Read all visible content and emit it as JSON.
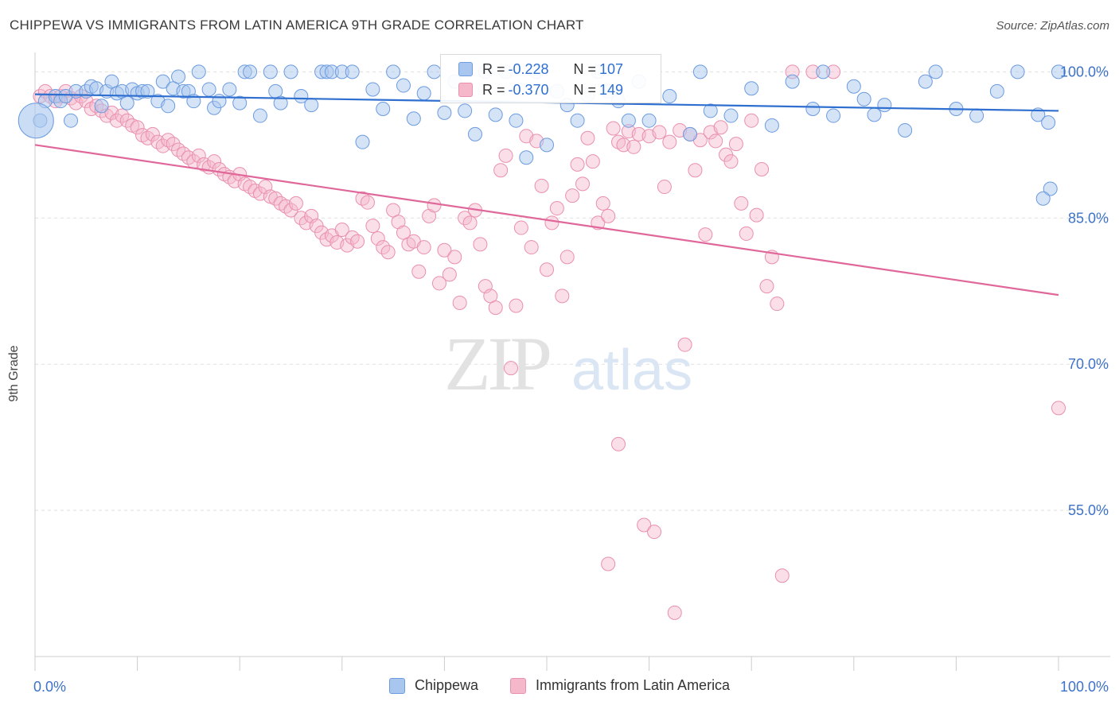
{
  "header": {
    "title": "CHIPPEWA VS IMMIGRANTS FROM LATIN AMERICA 9TH GRADE CORRELATION CHART",
    "source": "Source: ZipAtlas.com"
  },
  "watermark": {
    "zip": "ZIP",
    "atlas": "atlas"
  },
  "legend_top": {
    "rows": [
      {
        "r_label": "R =",
        "r_value": "-0.228",
        "n_label": "N =",
        "n_value": "107"
      },
      {
        "r_label": "R =",
        "r_value": "-0.370",
        "n_label": "N =",
        "n_value": "149"
      }
    ]
  },
  "legend_bottom": {
    "items": [
      "Chippewa",
      "Immigrants from Latin America"
    ]
  },
  "colors": {
    "blue_fill": "#a9c7ee",
    "blue_stroke": "#6c9be0",
    "blue_line": "#2f6fcf",
    "pink_fill": "#f5b8cb",
    "pink_stroke": "#ea8fae",
    "pink_line": "#e0679a",
    "tick_text": "#3d72c9",
    "grid": "#e0e0e0"
  },
  "chart_data": {
    "type": "scatter",
    "title": "CHIPPEWA VS IMMIGRANTS FROM LATIN AMERICA 9TH GRADE CORRELATION CHART",
    "xlabel": "",
    "ylabel": "9th Grade",
    "xlim": [
      0,
      100
    ],
    "ylim": [
      40,
      101.5
    ],
    "x_tick_labels": [
      "0.0%",
      "100.0%"
    ],
    "y_ticks": [
      55,
      70,
      85,
      100
    ],
    "y_tick_labels": [
      "55.0%",
      "70.0%",
      "85.0%",
      "100.0%"
    ],
    "grid": true,
    "legend_position": "top-center",
    "series": [
      {
        "name": "Chippewa",
        "color": "#a9c7ee",
        "r": -0.228,
        "n": 107,
        "trend": [
          [
            0,
            97.7
          ],
          [
            100,
            96.0
          ]
        ],
        "points": [
          [
            0.5,
            95
          ],
          [
            1,
            97
          ],
          [
            2,
            97.5
          ],
          [
            2.5,
            97
          ],
          [
            3,
            97.5
          ],
          [
            3.5,
            95
          ],
          [
            4,
            98
          ],
          [
            5,
            98
          ],
          [
            5.5,
            98.5
          ],
          [
            6,
            98.3
          ],
          [
            6.5,
            96.5
          ],
          [
            7,
            98
          ],
          [
            7.5,
            99
          ],
          [
            8,
            97.8
          ],
          [
            8.5,
            98
          ],
          [
            9,
            96.8
          ],
          [
            9.5,
            98.2
          ],
          [
            10,
            97.8
          ],
          [
            10.5,
            98
          ],
          [
            11,
            98
          ],
          [
            12,
            97
          ],
          [
            12.5,
            99
          ],
          [
            13,
            96.5
          ],
          [
            13.5,
            98.3
          ],
          [
            14,
            99.5
          ],
          [
            14.5,
            98
          ],
          [
            15,
            98
          ],
          [
            15.5,
            97
          ],
          [
            16,
            100
          ],
          [
            17,
            98.2
          ],
          [
            17.5,
            96.3
          ],
          [
            18,
            97
          ],
          [
            19,
            98.2
          ],
          [
            20,
            96.8
          ],
          [
            20.5,
            100
          ],
          [
            21,
            100
          ],
          [
            22,
            95.5
          ],
          [
            23,
            100
          ],
          [
            23.5,
            98
          ],
          [
            24,
            96.8
          ],
          [
            25,
            100
          ],
          [
            26,
            97.5
          ],
          [
            27,
            96.6
          ],
          [
            28,
            100
          ],
          [
            28.5,
            100
          ],
          [
            29,
            100
          ],
          [
            30,
            100
          ],
          [
            31,
            100
          ],
          [
            32,
            92.8
          ],
          [
            33,
            98.2
          ],
          [
            34,
            96.2
          ],
          [
            35,
            100
          ],
          [
            36,
            98.6
          ],
          [
            37,
            95.2
          ],
          [
            38,
            97.8
          ],
          [
            39,
            100
          ],
          [
            40,
            95.8
          ],
          [
            41,
            99
          ],
          [
            42,
            96
          ],
          [
            43,
            93.6
          ],
          [
            44,
            100
          ],
          [
            45,
            95.6
          ],
          [
            46,
            100
          ],
          [
            47,
            95
          ],
          [
            48,
            91.2
          ],
          [
            49,
            100
          ],
          [
            50,
            92.5
          ],
          [
            51,
            98
          ],
          [
            52,
            96.6
          ],
          [
            53,
            95
          ],
          [
            54,
            97.6
          ],
          [
            55,
            100
          ],
          [
            56,
            98
          ],
          [
            57,
            97
          ],
          [
            58,
            95
          ],
          [
            59,
            99
          ],
          [
            60,
            95
          ],
          [
            62,
            97.5
          ],
          [
            64,
            93.6
          ],
          [
            65,
            100
          ],
          [
            66,
            96
          ],
          [
            68,
            95.5
          ],
          [
            70,
            98.3
          ],
          [
            72,
            94.5
          ],
          [
            74,
            99
          ],
          [
            76,
            96.2
          ],
          [
            77,
            100
          ],
          [
            78,
            95.5
          ],
          [
            80,
            98.5
          ],
          [
            81,
            97.2
          ],
          [
            82,
            95.6
          ],
          [
            83,
            96.6
          ],
          [
            85,
            94
          ],
          [
            87,
            99
          ],
          [
            88,
            100
          ],
          [
            90,
            96.2
          ],
          [
            92,
            95.5
          ],
          [
            94,
            98
          ],
          [
            96,
            100
          ],
          [
            98,
            95.6
          ],
          [
            99,
            94.8
          ],
          [
            100,
            100
          ],
          [
            99.2,
            88
          ],
          [
            98.5,
            87
          ]
        ],
        "large_point": [
          0.1,
          95
        ]
      },
      {
        "name": "Immigrants from Latin America",
        "color": "#f5b8cb",
        "r": -0.37,
        "n": 149,
        "trend": [
          [
            0,
            92.5
          ],
          [
            100,
            77.1
          ]
        ],
        "points": [
          [
            0.5,
            97.5
          ],
          [
            1,
            98
          ],
          [
            1.5,
            97.5
          ],
          [
            2,
            97
          ],
          [
            2.5,
            97.5
          ],
          [
            3,
            98
          ],
          [
            3.5,
            97.3
          ],
          [
            4,
            96.8
          ],
          [
            4.5,
            97.5
          ],
          [
            5,
            97
          ],
          [
            5.5,
            96.2
          ],
          [
            6,
            96.5
          ],
          [
            6.5,
            96
          ],
          [
            7,
            95.5
          ],
          [
            7.5,
            95.8
          ],
          [
            8,
            95
          ],
          [
            8.5,
            95.5
          ],
          [
            9,
            95
          ],
          [
            9.5,
            94.5
          ],
          [
            10,
            94.3
          ],
          [
            10.5,
            93.5
          ],
          [
            11,
            93.2
          ],
          [
            11.5,
            93.6
          ],
          [
            12,
            92.8
          ],
          [
            12.5,
            92.4
          ],
          [
            13,
            93
          ],
          [
            13.5,
            92.6
          ],
          [
            14,
            92
          ],
          [
            14.5,
            91.6
          ],
          [
            15,
            91.2
          ],
          [
            15.5,
            90.8
          ],
          [
            16,
            91.4
          ],
          [
            16.5,
            90.5
          ],
          [
            17,
            90.2
          ],
          [
            17.5,
            90.8
          ],
          [
            18,
            90
          ],
          [
            18.5,
            89.5
          ],
          [
            19,
            89.2
          ],
          [
            19.5,
            88.8
          ],
          [
            20,
            89.5
          ],
          [
            20.5,
            88.5
          ],
          [
            21,
            88.2
          ],
          [
            21.5,
            87.8
          ],
          [
            22,
            87.5
          ],
          [
            22.5,
            88.2
          ],
          [
            23,
            87.2
          ],
          [
            23.5,
            87
          ],
          [
            24,
            86.5
          ],
          [
            24.5,
            86.2
          ],
          [
            25,
            85.8
          ],
          [
            25.5,
            86.5
          ],
          [
            26,
            85
          ],
          [
            26.5,
            84.5
          ],
          [
            27,
            85.2
          ],
          [
            27.5,
            84.2
          ],
          [
            28,
            83.5
          ],
          [
            28.5,
            82.8
          ],
          [
            29,
            83.2
          ],
          [
            29.5,
            82.5
          ],
          [
            30,
            83.8
          ],
          [
            30.5,
            82.2
          ],
          [
            31,
            83
          ],
          [
            31.5,
            82.6
          ],
          [
            32,
            87
          ],
          [
            32.5,
            86.6
          ],
          [
            33,
            84.2
          ],
          [
            33.5,
            82.9
          ],
          [
            34,
            82
          ],
          [
            34.5,
            81.5
          ],
          [
            35,
            85.8
          ],
          [
            35.5,
            84.6
          ],
          [
            36,
            83.5
          ],
          [
            36.5,
            82.3
          ],
          [
            37,
            82.6
          ],
          [
            37.5,
            79.5
          ],
          [
            38,
            82
          ],
          [
            38.5,
            85.2
          ],
          [
            39,
            86.3
          ],
          [
            39.5,
            78.3
          ],
          [
            40,
            81.7
          ],
          [
            40.5,
            79.2
          ],
          [
            41,
            81
          ],
          [
            41.5,
            76.3
          ],
          [
            42,
            85
          ],
          [
            42.5,
            84.5
          ],
          [
            43,
            85.8
          ],
          [
            43.5,
            82.3
          ],
          [
            44,
            78
          ],
          [
            44.5,
            77
          ],
          [
            45,
            75.8
          ],
          [
            45.5,
            89.9
          ],
          [
            46,
            91.4
          ],
          [
            46.5,
            69.6
          ],
          [
            47,
            76
          ],
          [
            47.5,
            84
          ],
          [
            48,
            93.4
          ],
          [
            48.5,
            82
          ],
          [
            49,
            92.9
          ],
          [
            49.5,
            88.3
          ],
          [
            50,
            79.7
          ],
          [
            50.5,
            84.5
          ],
          [
            51,
            86
          ],
          [
            51.5,
            77
          ],
          [
            52,
            81
          ],
          [
            52.5,
            87.3
          ],
          [
            53,
            90.5
          ],
          [
            53.5,
            88.5
          ],
          [
            54,
            93.2
          ],
          [
            54.5,
            90.8
          ],
          [
            55,
            84.5
          ],
          [
            55.5,
            86.5
          ],
          [
            56,
            85.2
          ],
          [
            56.5,
            94.2
          ],
          [
            57,
            92.8
          ],
          [
            57.5,
            92.5
          ],
          [
            58,
            93.9
          ],
          [
            58.5,
            92.3
          ],
          [
            59,
            93.6
          ],
          [
            59.5,
            53.5
          ],
          [
            60,
            93.4
          ],
          [
            60.5,
            52.8
          ],
          [
            61,
            93.8
          ],
          [
            61.5,
            88.2
          ],
          [
            62,
            92.8
          ],
          [
            62.5,
            44.5
          ],
          [
            63,
            94
          ],
          [
            63.5,
            72
          ],
          [
            64,
            93.6
          ],
          [
            64.5,
            89.9
          ],
          [
            65,
            93
          ],
          [
            65.5,
            83.3
          ],
          [
            66,
            93.8
          ],
          [
            66.5,
            92.9
          ],
          [
            67,
            94.3
          ],
          [
            67.5,
            91.5
          ],
          [
            68,
            90.8
          ],
          [
            68.5,
            92.6
          ],
          [
            69,
            86.5
          ],
          [
            69.5,
            83.4
          ],
          [
            70,
            95
          ],
          [
            70.5,
            85.3
          ],
          [
            71,
            90
          ],
          [
            71.5,
            78
          ],
          [
            72,
            81
          ],
          [
            72.5,
            76.2
          ],
          [
            73,
            48.3
          ],
          [
            74,
            100
          ],
          [
            76,
            100
          ],
          [
            78,
            100
          ],
          [
            100,
            65.5
          ],
          [
            57,
            61.8
          ],
          [
            56,
            49.5
          ]
        ]
      }
    ]
  }
}
